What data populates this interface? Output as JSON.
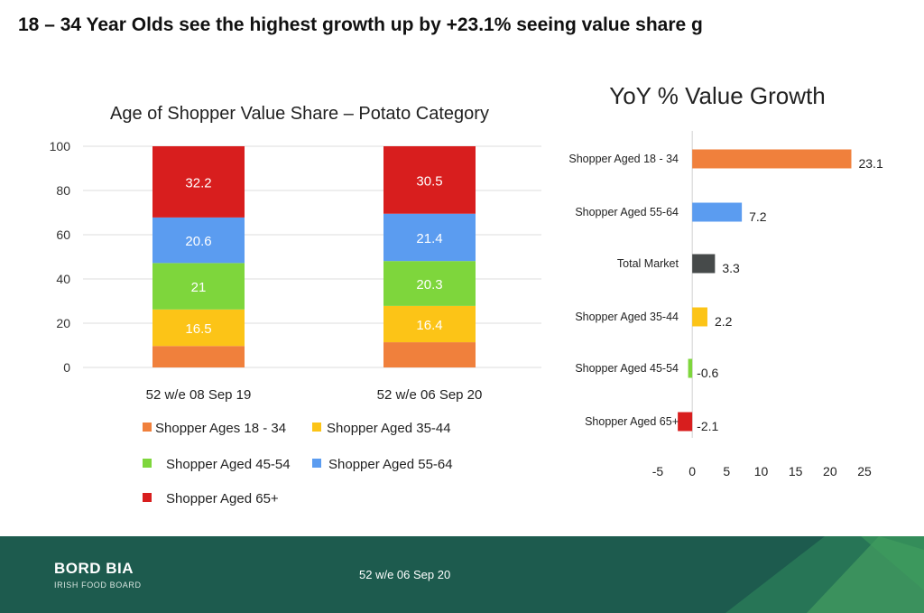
{
  "headline": "18 – 34 Year Olds see the highest growth up by +23.1% seeing value share g",
  "footer": {
    "brand": "BORD BIA",
    "brand_sub": "IRISH FOOD BOARD",
    "period": "52 w/e 06 Sep 20"
  },
  "chart_data": [
    {
      "type": "bar",
      "stacked": true,
      "title": "Age of Shopper Value Share – Potato Category",
      "categories": [
        "52 w/e 08 Sep 19",
        "52 w/e 06 Sep 20"
      ],
      "series": [
        {
          "name": "Shopper Ages 18 - 34",
          "values": [
            9.7,
            11.4
          ],
          "color": "#f0803c",
          "show_label": false
        },
        {
          "name": "Shopper Aged 35-44",
          "values": [
            16.5,
            16.4
          ],
          "color": "#fcc417",
          "show_label": true
        },
        {
          "name": "Shopper Aged 45-54",
          "values": [
            21,
            20.3
          ],
          "color": "#7ed63c",
          "show_label": true
        },
        {
          "name": "Shopper Aged 55-64",
          "values": [
            20.6,
            21.4
          ],
          "color": "#5b9cf0",
          "show_label": true
        },
        {
          "name": "Shopper Aged 65+",
          "values": [
            32.2,
            30.5
          ],
          "color": "#d81e1e",
          "show_label": true
        }
      ],
      "ylim": [
        0,
        100
      ],
      "yticks": [
        0,
        20,
        40,
        60,
        80,
        100
      ],
      "grid": true,
      "legend": "bottom"
    },
    {
      "type": "bar",
      "orientation": "horizontal",
      "title": "YoY % Value Growth",
      "categories": [
        "Shopper Aged 18 - 34",
        "Shopper Aged 55-64",
        "Total Market",
        "Shopper Aged 35-44",
        "Shopper Aged 45-54",
        "Shopper Aged 65+"
      ],
      "values": [
        23.1,
        7.2,
        3.3,
        2.2,
        -0.6,
        -2.1
      ],
      "colors": [
        "#f0803c",
        "#5b9cf0",
        "#464a4a",
        "#fcc417",
        "#7ed63c",
        "#d81e1e"
      ],
      "xlim": [
        -5,
        25
      ],
      "xticks": [
        -5,
        0,
        5,
        10,
        15,
        20,
        25
      ],
      "grid": false
    }
  ]
}
